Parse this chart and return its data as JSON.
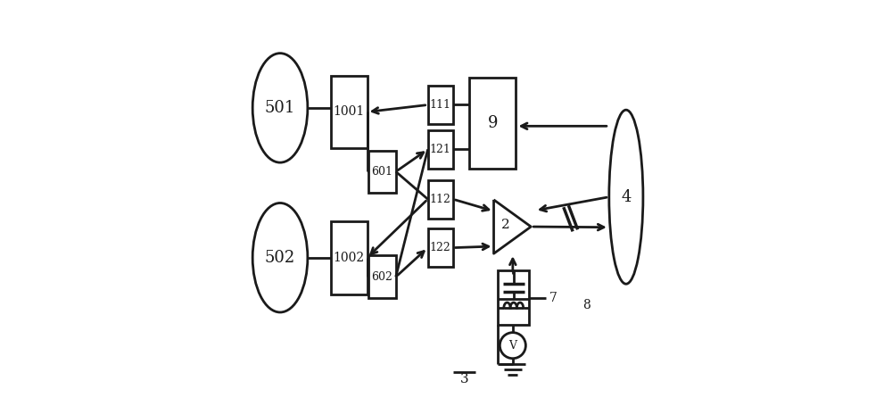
{
  "bg_color": "#ffffff",
  "line_color": "#1a1a1a",
  "lw": 2.0,
  "fig_width": 10.0,
  "fig_height": 4.55,
  "dpi": 100
}
